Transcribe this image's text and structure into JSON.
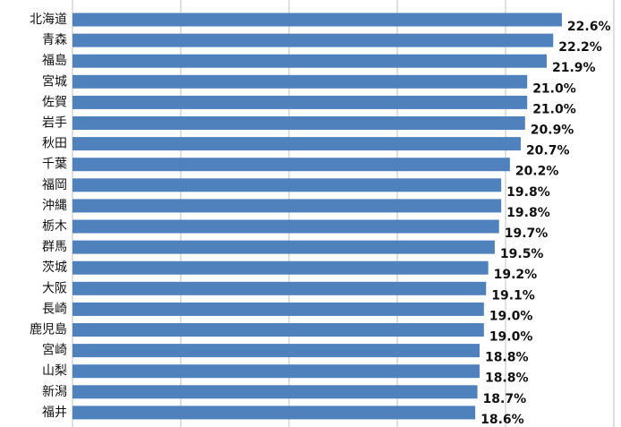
{
  "chart_data": {
    "type": "bar",
    "orientation": "horizontal",
    "categories": [
      "北海道",
      "青森",
      "福島",
      "宮城",
      "佐賀",
      "岩手",
      "秋田",
      "千葉",
      "福岡",
      "沖縄",
      "栃木",
      "群馬",
      "茨城",
      "大阪",
      "長崎",
      "鹿児島",
      "宮崎",
      "山梨",
      "新潟",
      "福井"
    ],
    "values": [
      22.6,
      22.2,
      21.9,
      21.0,
      21.0,
      20.9,
      20.7,
      20.2,
      19.8,
      19.8,
      19.7,
      19.5,
      19.2,
      19.1,
      19.0,
      19.0,
      18.8,
      18.8,
      18.7,
      18.6
    ],
    "value_labels": [
      "22.6%",
      "22.2%",
      "21.9%",
      "21.0%",
      "21.0%",
      "20.9%",
      "20.7%",
      "20.2%",
      "19.8%",
      "19.8%",
      "19.7%",
      "19.5%",
      "19.2%",
      "19.1%",
      "19.0%",
      "19.0%",
      "18.8%",
      "18.8%",
      "18.7%",
      "18.6%"
    ],
    "xlim": [
      0,
      25
    ],
    "grid": true,
    "bar_color": "#4f81bd",
    "grid_color": "#c0c0c0"
  }
}
